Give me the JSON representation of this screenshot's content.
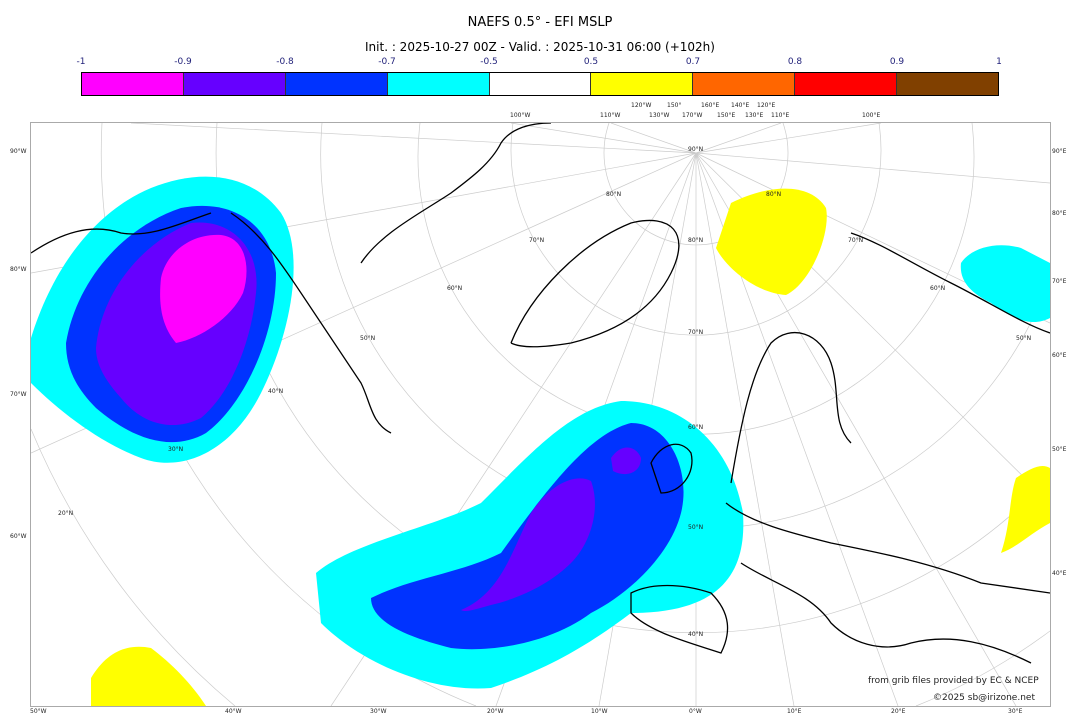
{
  "title": "NAEFS 0.5° - EFI MSLP",
  "subtitle": "Init. : 2025-10-27 00Z - Valid. : 2025-10-31 06:00 (+102h)",
  "colorbar": {
    "ticks": [
      "-1",
      "-0.9",
      "-0.8",
      "-0.7",
      "-0.5",
      "0.5",
      "0.7",
      "0.8",
      "0.9",
      "1"
    ],
    "colors": [
      "#ff00ff",
      "#6600ff",
      "#0033ff",
      "#00ffff",
      "#ffffff",
      "#ffff00",
      "#ff6600",
      "#ff0000",
      "#804000"
    ]
  },
  "grid_labels": {
    "top": [
      "100°W",
      "110°W",
      "120°W",
      "130°W",
      "150°",
      "170°W",
      "160°E",
      "150°E",
      "140°E",
      "130°E",
      "120°E",
      "110°E",
      "100°E"
    ],
    "left": [
      "90°W",
      "80°W",
      "70°W",
      "60°W"
    ],
    "right": [
      "90°E",
      "80°E",
      "70°E",
      "60°E",
      "50°E",
      "40°E"
    ],
    "bottom": [
      "50°W",
      "40°W",
      "30°W",
      "20°W",
      "10°W",
      "0°W",
      "10°E",
      "20°E",
      "30°E"
    ],
    "lat": [
      "90°N",
      "80°N",
      "70°N",
      "60°N",
      "50°N",
      "40°N",
      "30°N",
      "20°N"
    ]
  },
  "credits": {
    "line1": "from grib files provided by EC & NCEP",
    "line2": "©2025 sb@irizone.net"
  }
}
